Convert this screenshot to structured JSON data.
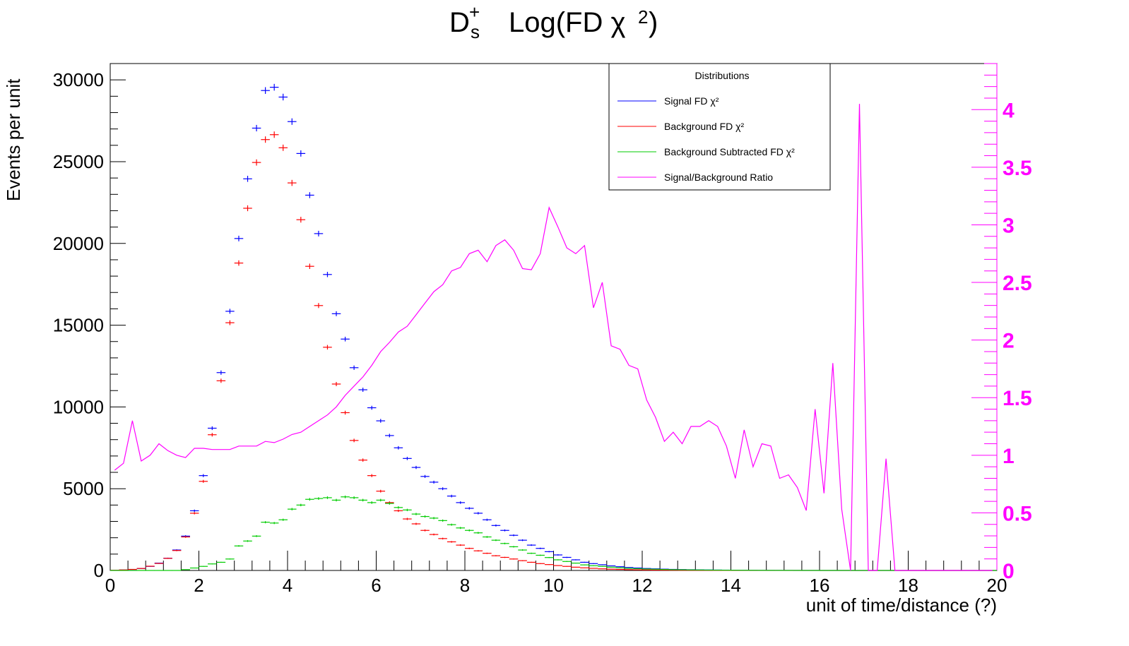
{
  "title": {
    "particle": "D",
    "particle_sub": "s",
    "particle_sup": "+",
    "main": "Log(FD χ",
    "main_sup": "2",
    "main_close": ")"
  },
  "colors": {
    "signal": "#0000ff",
    "background": "#ff0000",
    "subtracted": "#00cc00",
    "ratio": "#ff00ff",
    "axis": "#000000"
  },
  "chart_data": {
    "type": "scatter",
    "title": "D_s^+   Log(FD χ²)",
    "xlabel": "unit of time/distance (?)",
    "ylabel": "Events per unit",
    "xlim": [
      0,
      20
    ],
    "ylim": [
      0,
      31000
    ],
    "y2lim": [
      0,
      4.4
    ],
    "grid": false,
    "legend_position": "top-right",
    "x_ticks": [
      "0",
      "2",
      "4",
      "6",
      "8",
      "10",
      "12",
      "14",
      "16",
      "18",
      "20"
    ],
    "y_ticks": [
      "0",
      "5000",
      "10000",
      "15000",
      "20000",
      "25000",
      "30000"
    ],
    "y2_ticks": [
      "0",
      "0.5",
      "1",
      "1.5",
      "2",
      "2.5",
      "3",
      "3.5",
      "4"
    ],
    "legend_title": "Distributions",
    "bin_width": 0.2,
    "series": [
      {
        "name": "Signal FD χ²",
        "axis": "left",
        "style": "errorbar",
        "x": [
          0.1,
          0.3,
          0.5,
          0.7,
          0.9,
          1.1,
          1.3,
          1.5,
          1.7,
          1.9,
          2.1,
          2.3,
          2.5,
          2.7,
          2.9,
          3.1,
          3.3,
          3.5,
          3.7,
          3.9,
          4.1,
          4.3,
          4.5,
          4.7,
          4.9,
          5.1,
          5.3,
          5.5,
          5.7,
          5.9,
          6.1,
          6.3,
          6.5,
          6.7,
          6.9,
          7.1,
          7.3,
          7.5,
          7.7,
          7.9,
          8.1,
          8.3,
          8.5,
          8.7,
          8.9,
          9.1,
          9.3,
          9.5,
          9.7,
          9.9,
          10.1,
          10.3,
          10.5,
          10.7,
          10.9,
          11.1,
          11.3,
          11.5,
          11.7,
          11.9,
          12.1,
          12.3,
          12.5,
          12.7,
          12.9,
          13.1,
          13.3,
          13.5,
          13.7,
          13.9,
          14.1,
          14.3,
          14.5,
          14.7,
          14.9,
          15.1,
          15.3,
          15.5,
          15.7,
          15.9,
          16.1,
          16.3,
          16.5,
          16.7,
          16.9,
          17.1,
          17.3,
          17.5,
          17.7,
          17.9,
          18.1,
          18.3,
          18.5,
          18.7,
          18.9,
          19.1,
          19.3,
          19.5,
          19.7,
          19.9
        ],
        "values": [
          10,
          30,
          60,
          120,
          250,
          450,
          750,
          1250,
          2100,
          3650,
          5800,
          8700,
          12100,
          15850,
          20300,
          23950,
          27050,
          29350,
          29550,
          28950,
          27450,
          25500,
          22950,
          20600,
          18100,
          15700,
          14150,
          12400,
          11050,
          9950,
          9150,
          8250,
          7500,
          6850,
          6300,
          5750,
          5400,
          5000,
          4550,
          4150,
          3800,
          3500,
          3100,
          2750,
          2450,
          2150,
          1850,
          1550,
          1350,
          1150,
          950,
          800,
          650,
          500,
          420,
          350,
          280,
          230,
          180,
          150,
          120,
          100,
          80,
          65,
          55,
          45,
          38,
          30,
          25,
          20,
          16,
          13,
          10,
          8,
          6,
          5,
          4,
          3,
          2,
          2,
          1,
          1,
          1,
          1,
          0,
          0,
          0,
          0,
          0,
          0,
          0,
          0,
          0,
          0,
          0,
          0,
          0,
          0,
          0,
          0
        ]
      },
      {
        "name": "Background FD χ²",
        "axis": "left",
        "style": "errorbar",
        "x": [
          0.1,
          0.3,
          0.5,
          0.7,
          0.9,
          1.1,
          1.3,
          1.5,
          1.7,
          1.9,
          2.1,
          2.3,
          2.5,
          2.7,
          2.9,
          3.1,
          3.3,
          3.5,
          3.7,
          3.9,
          4.1,
          4.3,
          4.5,
          4.7,
          4.9,
          5.1,
          5.3,
          5.5,
          5.7,
          5.9,
          6.1,
          6.3,
          6.5,
          6.7,
          6.9,
          7.1,
          7.3,
          7.5,
          7.7,
          7.9,
          8.1,
          8.3,
          8.5,
          8.7,
          8.9,
          9.1,
          9.3,
          9.5,
          9.7,
          9.9,
          10.1,
          10.3,
          10.5,
          10.7,
          10.9,
          11.1,
          11.3,
          11.5,
          11.7,
          11.9,
          12.1,
          12.3,
          12.5,
          12.7,
          12.9,
          13.1,
          13.3,
          13.5,
          13.7,
          13.9,
          14.1,
          14.3,
          14.5,
          14.7,
          14.9,
          15.1,
          15.3,
          15.5,
          15.7,
          15.9,
          16.1,
          16.3,
          16.5,
          16.7,
          16.9,
          17.1,
          17.3,
          17.5,
          17.7,
          17.9,
          18.1,
          18.3,
          18.5,
          18.7,
          18.9,
          19.1,
          19.3,
          19.5,
          19.7,
          19.9
        ],
        "values": [
          12,
          32,
          65,
          122,
          260,
          430,
          740,
          1220,
          2050,
          3500,
          5450,
          8300,
          11600,
          15150,
          18800,
          22150,
          24950,
          26350,
          26650,
          25850,
          23700,
          21450,
          18600,
          16200,
          13650,
          11400,
          9650,
          7950,
          6750,
          5800,
          4850,
          4150,
          3650,
          3150,
          2850,
          2450,
          2200,
          1950,
          1750,
          1550,
          1350,
          1200,
          1050,
          900,
          800,
          700,
          600,
          500,
          420,
          360,
          300,
          250,
          200,
          160,
          130,
          100,
          80,
          65,
          50,
          40,
          32,
          25,
          20,
          16,
          12,
          10,
          8,
          6,
          5,
          4,
          3,
          3,
          2,
          2,
          1,
          1,
          1,
          1,
          0,
          0,
          0,
          0,
          0,
          0,
          0,
          0,
          0,
          0,
          0,
          0,
          0,
          0,
          0,
          0,
          0,
          0,
          0,
          0,
          0,
          0
        ]
      },
      {
        "name": "Background Subtracted FD χ²",
        "axis": "left",
        "style": "errorbar",
        "x": [
          0.1,
          0.3,
          0.5,
          0.7,
          0.9,
          1.1,
          1.3,
          1.5,
          1.7,
          1.9,
          2.1,
          2.3,
          2.5,
          2.7,
          2.9,
          3.1,
          3.3,
          3.5,
          3.7,
          3.9,
          4.1,
          4.3,
          4.5,
          4.7,
          4.9,
          5.1,
          5.3,
          5.5,
          5.7,
          5.9,
          6.1,
          6.3,
          6.5,
          6.7,
          6.9,
          7.1,
          7.3,
          7.5,
          7.7,
          7.9,
          8.1,
          8.3,
          8.5,
          8.7,
          8.9,
          9.1,
          9.3,
          9.5,
          9.7,
          9.9,
          10.1,
          10.3,
          10.5,
          10.7,
          10.9,
          11.1,
          11.3,
          11.5,
          11.7,
          11.9,
          12.1,
          12.3,
          12.5,
          12.7,
          12.9,
          13.1,
          13.3,
          13.5,
          13.7,
          13.9,
          14.1,
          14.3,
          14.5,
          14.7,
          14.9,
          15.1,
          15.3,
          15.5,
          15.7,
          15.9,
          16.1,
          16.3,
          16.5,
          16.7,
          16.9,
          17.1,
          17.3,
          17.5,
          17.7,
          17.9,
          18.1,
          18.3,
          18.5,
          18.7,
          18.9,
          19.1,
          19.3,
          19.5,
          19.7,
          19.9
        ],
        "values": [
          0,
          0,
          0,
          0,
          0,
          0,
          0,
          0,
          50,
          150,
          250,
          400,
          500,
          700,
          1500,
          1800,
          2100,
          2950,
          2900,
          3100,
          3750,
          4000,
          4350,
          4400,
          4450,
          4300,
          4500,
          4450,
          4300,
          4150,
          4300,
          4100,
          3850,
          3700,
          3450,
          3300,
          3200,
          3050,
          2800,
          2600,
          2450,
          2300,
          2050,
          1850,
          1650,
          1450,
          1250,
          1050,
          930,
          790,
          650,
          550,
          450,
          340,
          290,
          250,
          200,
          165,
          130,
          110,
          88,
          75,
          60,
          49,
          43,
          35,
          30,
          24,
          20,
          16,
          13,
          10,
          8,
          6,
          5,
          4,
          3,
          2,
          2,
          2,
          1,
          1,
          1,
          1,
          0,
          0,
          0,
          0,
          0,
          0,
          0,
          0,
          0,
          0,
          0,
          0,
          0,
          0,
          0,
          0
        ]
      },
      {
        "name": "Signal/Background Ratio",
        "axis": "right",
        "style": "line",
        "x": [
          0.1,
          0.3,
          0.5,
          0.7,
          0.9,
          1.1,
          1.3,
          1.5,
          1.7,
          1.9,
          2.1,
          2.3,
          2.5,
          2.7,
          2.9,
          3.1,
          3.3,
          3.5,
          3.7,
          3.9,
          4.1,
          4.3,
          4.5,
          4.7,
          4.9,
          5.1,
          5.3,
          5.5,
          5.7,
          5.9,
          6.1,
          6.3,
          6.5,
          6.7,
          6.9,
          7.1,
          7.3,
          7.5,
          7.7,
          7.9,
          8.1,
          8.3,
          8.5,
          8.7,
          8.9,
          9.1,
          9.3,
          9.5,
          9.7,
          9.9,
          10.1,
          10.3,
          10.5,
          10.7,
          10.9,
          11.1,
          11.3,
          11.5,
          11.7,
          11.9,
          12.1,
          12.3,
          12.5,
          12.7,
          12.9,
          13.1,
          13.3,
          13.5,
          13.7,
          13.9,
          14.1,
          14.3,
          14.5,
          14.7,
          14.9,
          15.1,
          15.3,
          15.5,
          15.7,
          15.9,
          16.1,
          16.3,
          16.5,
          16.7,
          16.9,
          17.1,
          17.3,
          17.5,
          17.7,
          17.9,
          18.1,
          18.3,
          18.5,
          18.7,
          18.9,
          19.1,
          19.3,
          19.5,
          19.7,
          19.9
        ],
        "values": [
          0.87,
          0.93,
          1.3,
          0.95,
          1.0,
          1.1,
          1.04,
          1.0,
          0.98,
          1.06,
          1.06,
          1.05,
          1.05,
          1.05,
          1.08,
          1.08,
          1.08,
          1.12,
          1.11,
          1.14,
          1.18,
          1.2,
          1.25,
          1.3,
          1.35,
          1.42,
          1.52,
          1.6,
          1.68,
          1.78,
          1.9,
          1.98,
          2.07,
          2.12,
          2.22,
          2.32,
          2.42,
          2.48,
          2.6,
          2.63,
          2.75,
          2.78,
          2.68,
          2.82,
          2.87,
          2.78,
          2.62,
          2.61,
          2.75,
          3.15,
          2.98,
          2.8,
          2.75,
          2.82,
          2.28,
          2.5,
          1.95,
          1.92,
          1.78,
          1.75,
          1.48,
          1.33,
          1.12,
          1.2,
          1.1,
          1.25,
          1.25,
          1.3,
          1.25,
          1.08,
          0.8,
          1.22,
          0.9,
          1.1,
          1.08,
          0.8,
          0.83,
          0.72,
          0.52,
          1.4,
          0.67,
          1.8,
          0.53,
          0.0,
          4.05,
          0.0,
          0.0,
          0.97,
          0.0,
          0.0,
          0.0,
          0.0,
          0.0,
          0.0,
          0.0,
          0.0,
          0.0,
          0.0,
          0.0,
          0.0
        ]
      }
    ]
  }
}
